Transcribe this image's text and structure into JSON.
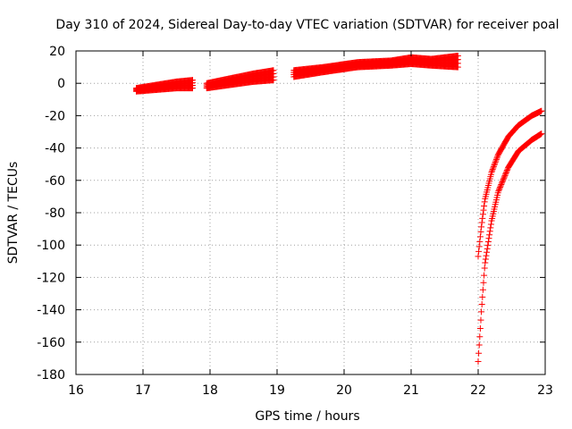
{
  "chart_data": {
    "type": "scatter",
    "title": "Day 310 of 2024, Sidereal Day-to-day VTEC variation (SDTVAR) for receiver poal",
    "xlabel": "GPS time / hours",
    "ylabel": "SDTVAR / TECUs",
    "xlim": [
      16,
      23
    ],
    "ylim": [
      -180,
      20
    ],
    "xticks": [
      16,
      17,
      18,
      19,
      20,
      21,
      22,
      23
    ],
    "yticks": [
      20,
      0,
      -20,
      -40,
      -60,
      -80,
      -100,
      -120,
      -140,
      -160,
      -180
    ],
    "grid": true,
    "marker": "+",
    "color": "#ff0000",
    "series": [
      {
        "name": "segment-1",
        "x": [
          16.9,
          17.2,
          17.5,
          17.75
        ],
        "y_lower": [
          -5,
          -4,
          -3,
          -3
        ],
        "y_upper": [
          -3,
          -1,
          1,
          2
        ]
      },
      {
        "name": "segment-2",
        "x": [
          17.95,
          18.3,
          18.65,
          18.95
        ],
        "y_lower": [
          -3,
          -1,
          1,
          2
        ],
        "y_upper": [
          0,
          3,
          6,
          8
        ]
      },
      {
        "name": "segment-3",
        "x": [
          19.25,
          19.7,
          20.2,
          20.7,
          21.0,
          21.3,
          21.7
        ],
        "y_lower": [
          4,
          7,
          10,
          11,
          12,
          11,
          10
        ],
        "y_upper": [
          8,
          10,
          13,
          14,
          16,
          15,
          17
        ]
      },
      {
        "name": "segment-4-upper",
        "x": [
          22.0,
          22.05,
          22.1,
          22.2,
          22.3,
          22.45,
          22.6,
          22.8,
          22.95
        ],
        "y": [
          -107,
          -88,
          -72,
          -55,
          -44,
          -33,
          -26,
          -20,
          -17
        ]
      },
      {
        "name": "segment-4-lower",
        "x": [
          22.0,
          22.05,
          22.1,
          22.2,
          22.3,
          22.45,
          22.6,
          22.8,
          22.95
        ],
        "y": [
          -172,
          -140,
          -112,
          -85,
          -67,
          -52,
          -42,
          -35,
          -31
        ]
      }
    ]
  }
}
